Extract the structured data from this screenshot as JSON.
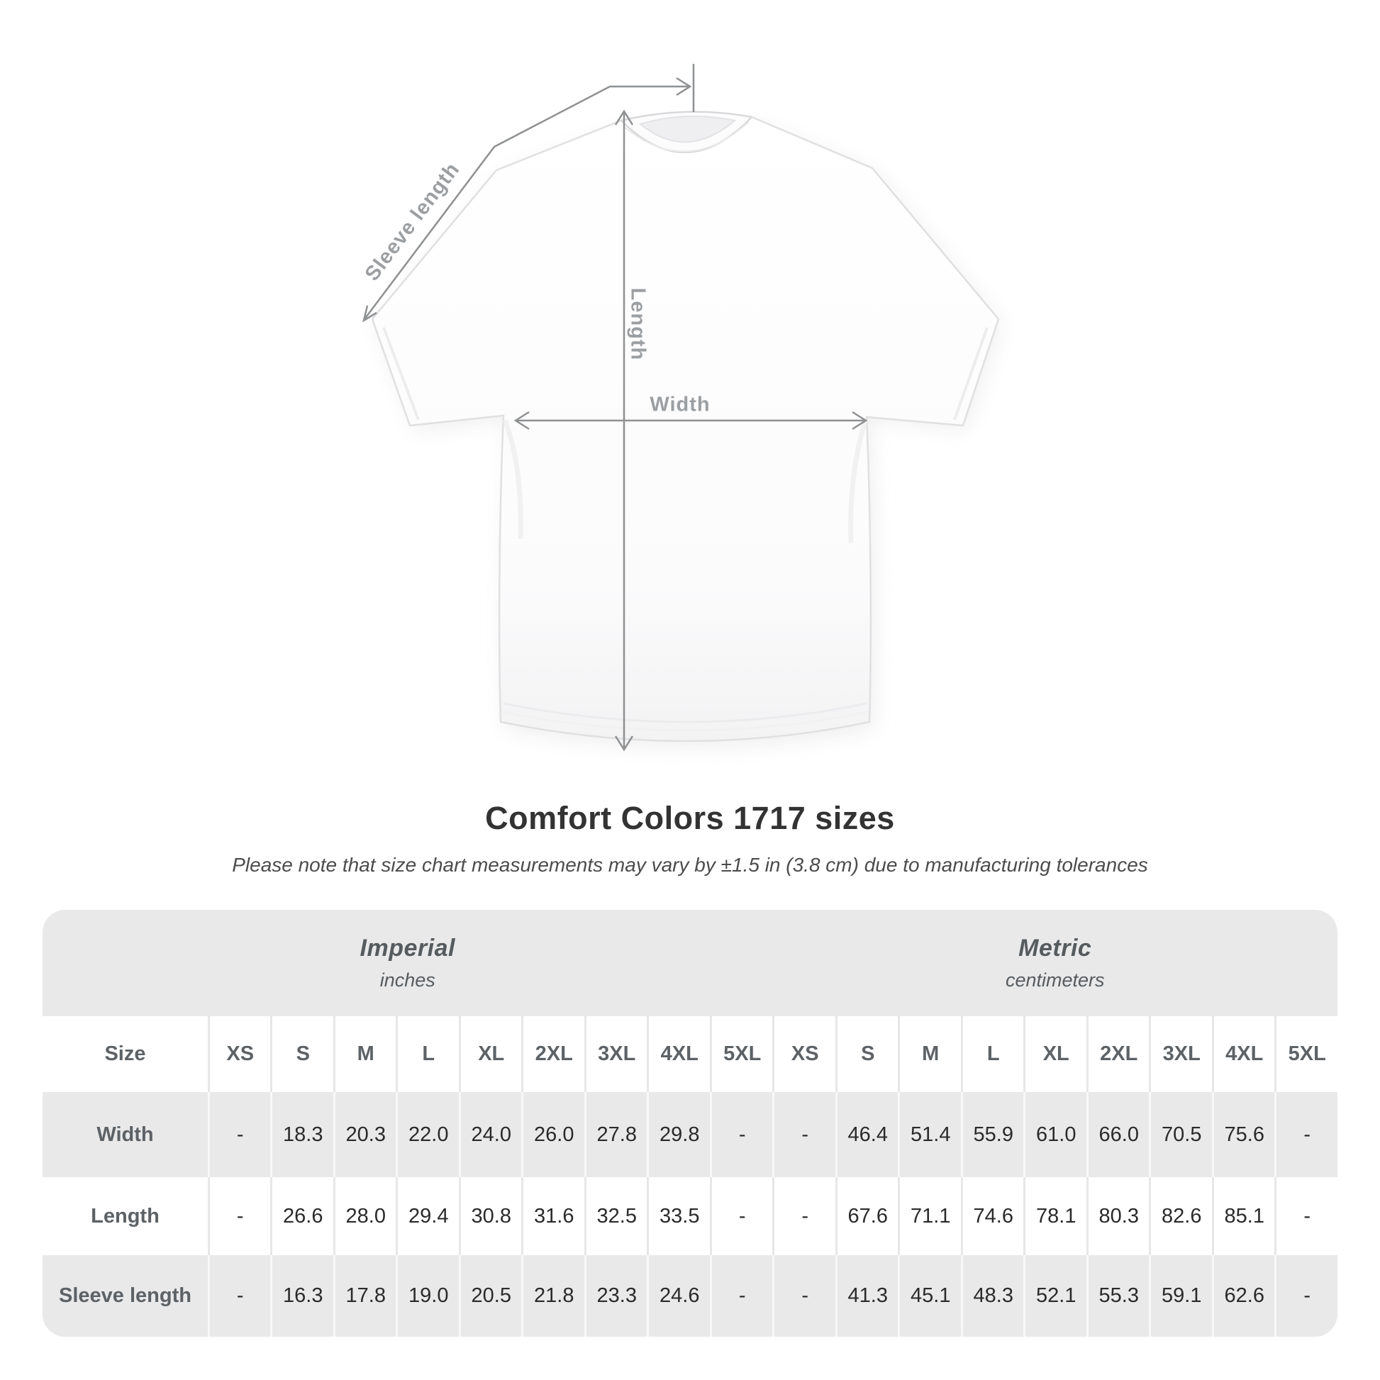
{
  "title": "Comfort Colors 1717 sizes",
  "subtitle": "Please note that size chart measurements may vary by ±1.5 in (3.8 cm) due to manufacturing tolerances",
  "diagram": {
    "sleeve_length_label": "Sleeve length",
    "length_label": "Length",
    "width_label": "Width"
  },
  "colors": {
    "table_bg": "#e9e9ea",
    "row_alt": "#ffffff",
    "arrow": "#8e9091",
    "diagram_label": "#9c9fa2",
    "title_text": "#333333"
  },
  "size_table": {
    "corner_label": "Size",
    "groups": [
      {
        "name": "Imperial",
        "unit": "inches"
      },
      {
        "name": "Metric",
        "unit": "centimeters"
      }
    ],
    "sizes": [
      "XS",
      "S",
      "M",
      "L",
      "XL",
      "2XL",
      "3XL",
      "4XL",
      "5XL"
    ],
    "rows": [
      {
        "label": "Width",
        "imperial": [
          "-",
          "18.3",
          "20.3",
          "22.0",
          "24.0",
          "26.0",
          "27.8",
          "29.8",
          "-"
        ],
        "metric": [
          "-",
          "46.4",
          "51.4",
          "55.9",
          "61.0",
          "66.0",
          "70.5",
          "75.6",
          "-"
        ]
      },
      {
        "label": "Length",
        "imperial": [
          "-",
          "26.6",
          "28.0",
          "29.4",
          "30.8",
          "31.6",
          "32.5",
          "33.5",
          "-"
        ],
        "metric": [
          "-",
          "67.6",
          "71.1",
          "74.6",
          "78.1",
          "80.3",
          "82.6",
          "85.1",
          "-"
        ]
      },
      {
        "label": "Sleeve length",
        "imperial": [
          "-",
          "16.3",
          "17.8",
          "19.0",
          "20.5",
          "21.8",
          "23.3",
          "24.6",
          "-"
        ],
        "metric": [
          "-",
          "41.3",
          "45.1",
          "48.3",
          "52.1",
          "55.3",
          "59.1",
          "62.6",
          "-"
        ]
      }
    ]
  }
}
